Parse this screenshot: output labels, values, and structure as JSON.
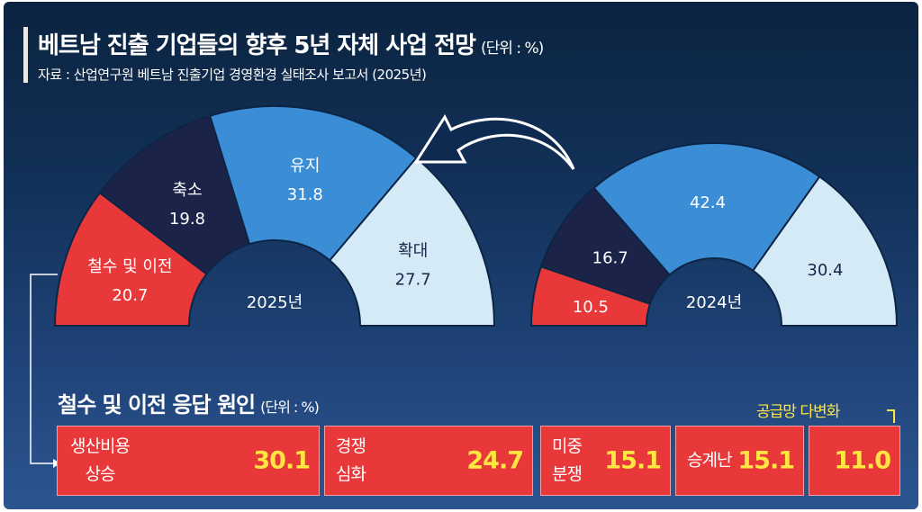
{
  "header": {
    "title": "베트남 진출 기업들의 향후 5년 자체 사업 전망",
    "unit": "(단위 : %)",
    "source": "자료 : 산업연구원 베트남 진출기업 경영환경 실태조사 보고서 (2025년)"
  },
  "colors": {
    "red": "#e8383a",
    "navy": "#1b2448",
    "blue": "#3b8ed6",
    "light": "#d5eaf7",
    "yellow": "#ffe640"
  },
  "chart_data": [
    {
      "type": "pie",
      "variant": "half-donut",
      "title": "2025년",
      "categories": [
        "철수 및 이전",
        "축소",
        "유지",
        "확대"
      ],
      "values": [
        20.7,
        19.8,
        31.8,
        27.7
      ]
    },
    {
      "type": "pie",
      "variant": "half-donut",
      "title": "2024년",
      "categories": [
        "철수 및 이전",
        "축소",
        "유지",
        "확대"
      ],
      "values": [
        10.5,
        16.7,
        42.4,
        30.4
      ]
    },
    {
      "type": "bar",
      "title": "철수 및 이전 응답 원인",
      "unit": "(단위 : %)",
      "categories": [
        "생산비용 상승",
        "경쟁 심화",
        "미중 분쟁",
        "승계난",
        "공급망 다변화"
      ],
      "values": [
        30.1,
        24.7,
        15.1,
        15.1,
        11.0
      ]
    }
  ],
  "reasons": [
    {
      "name": "생산비용\n상승",
      "value": "30.1"
    },
    {
      "name": "경쟁\n심화",
      "value": "24.7"
    },
    {
      "name": "미중\n분쟁",
      "value": "15.1"
    },
    {
      "name": "승계난",
      "value": "15.1"
    },
    {
      "name": "",
      "value": "11.0"
    }
  ],
  "supply_label": "공급망 다변화"
}
